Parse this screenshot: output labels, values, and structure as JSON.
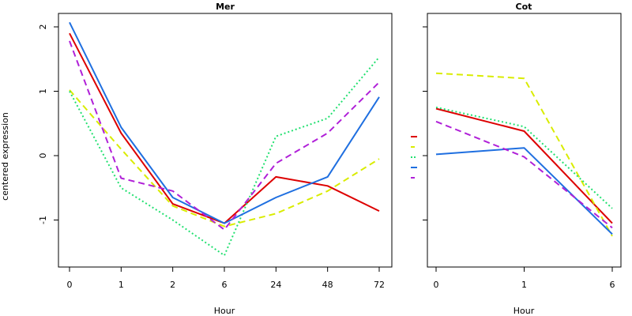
{
  "ylabel": "centered expression",
  "colors": {
    "red": "#dd0000",
    "yellow": "#d9ec00",
    "green": "#22e070",
    "blue": "#1f6fe0",
    "purple": "#b020d8"
  },
  "legend_styles": [
    {
      "color": "#dd0000",
      "dash": "solid"
    },
    {
      "color": "#d9ec00",
      "dash": "dashed"
    },
    {
      "color": "#22e070",
      "dash": "dotted"
    },
    {
      "color": "#1f6fe0",
      "dash": "solid"
    },
    {
      "color": "#b020d8",
      "dash": "dashed"
    }
  ],
  "chart_data": [
    {
      "type": "line",
      "title": "Mer",
      "xlabel": "Hour",
      "categories": [
        "0",
        "1",
        "2",
        "6",
        "24",
        "48",
        "72"
      ],
      "yticks": [
        2,
        1,
        0,
        -1
      ],
      "ylim": [
        -1.75,
        2.2
      ],
      "series": [
        {
          "color": "#dd0000",
          "dash": "solid",
          "values": [
            1.9,
            0.35,
            -0.75,
            -1.05,
            -0.33,
            -0.47,
            -0.86
          ]
        },
        {
          "color": "#d9ec00",
          "dash": "dashed",
          "values": [
            1.02,
            0.1,
            -0.78,
            -1.1,
            -0.9,
            -0.55,
            -0.05
          ]
        },
        {
          "color": "#22e070",
          "dash": "dotted",
          "values": [
            1.0,
            -0.5,
            -1.0,
            -1.55,
            0.3,
            0.58,
            1.53
          ]
        },
        {
          "color": "#1f6fe0",
          "dash": "solid",
          "values": [
            2.07,
            0.44,
            -0.65,
            -1.05,
            -0.65,
            -0.33,
            0.91
          ]
        },
        {
          "color": "#b020d8",
          "dash": "dashed",
          "values": [
            1.78,
            -0.35,
            -0.55,
            -1.15,
            -0.12,
            0.35,
            1.14
          ]
        }
      ]
    },
    {
      "type": "line",
      "title": "Cot",
      "xlabel": "Hour",
      "categories": [
        "0",
        "1",
        "6"
      ],
      "ylim": [
        -1.75,
        2.2
      ],
      "series": [
        {
          "color": "#dd0000",
          "dash": "solid",
          "values": [
            0.73,
            0.38,
            -1.05
          ]
        },
        {
          "color": "#d9ec00",
          "dash": "dashed",
          "values": [
            1.28,
            1.2,
            -1.25
          ]
        },
        {
          "color": "#22e070",
          "dash": "dotted",
          "values": [
            0.75,
            0.45,
            -0.82
          ]
        },
        {
          "color": "#1f6fe0",
          "dash": "solid",
          "values": [
            0.02,
            0.12,
            -1.22
          ]
        },
        {
          "color": "#b020d8",
          "dash": "dashed",
          "values": [
            0.53,
            -0.02,
            -1.12
          ]
        }
      ]
    }
  ]
}
